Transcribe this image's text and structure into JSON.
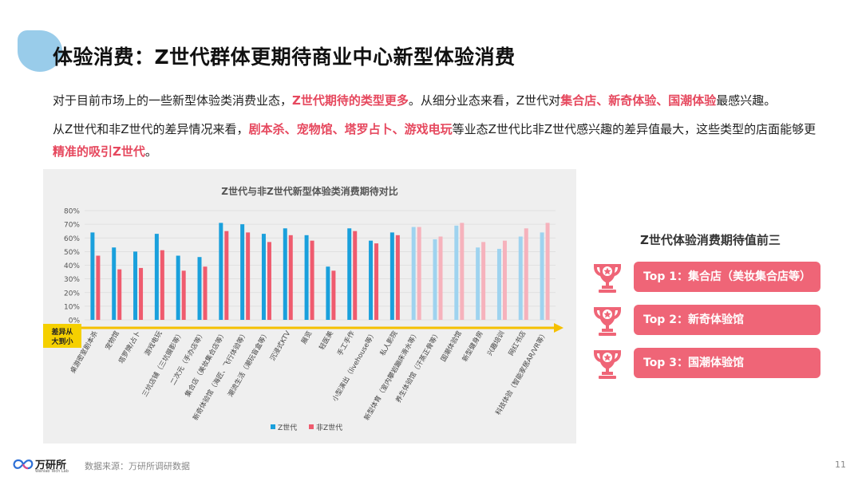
{
  "header": {
    "title": "体验消费：Z世代群体更期待商业中心新型体验消费"
  },
  "paragraph1": {
    "part1": "对于目前市场上的一些新型体验类消费业态，",
    "highlight1": "Z世代期待的类型更多",
    "part2": "。从细分业态来看，Z世代对",
    "highlight2": "集合店、新奇体验、国潮体验",
    "part3": "最感兴趣。"
  },
  "paragraph2": {
    "part1": "从Z世代和非Z世代的差异情况来看，",
    "highlight1": "剧本杀、宠物馆、塔罗占卜、游戏电玩",
    "part2": "等业态Z世代比非Z世代感兴趣的差异值最大，这些类型的店面能够更",
    "highlight2": "精准的吸引Z世代",
    "part3": "。"
  },
  "chart_data": {
    "type": "bar",
    "title": "Z世代与非Z世代新型体验类消费期待对比",
    "yticks": [
      "0%",
      "10%",
      "20%",
      "30%",
      "40%",
      "50%",
      "60%",
      "70%",
      "80%"
    ],
    "ylim": [
      0,
      80
    ],
    "arrow_label": "差异从大到小",
    "categories": [
      "桌游密室剧本杀",
      "宠物馆",
      "塔罗牌/占卜",
      "游戏电玩",
      "三坑店铺（三坑摄影等）",
      "二次元（手办店等）",
      "集合店（美妆集合店等）",
      "新奇体验馆（海匠、飞行体验等）",
      "潮流生活（潮玩盲盒等）",
      "沉浸式KTV",
      "展览",
      "轻医美",
      "手工手作",
      "小型演出（livehouse等）",
      "私人影院",
      "新型体育（室内攀岩蹦床滑水等）",
      "养生体验馆（汗蒸正骨等）",
      "国潮体验馆",
      "新型健身房",
      "兴趣培训",
      "网红书店",
      "科技体验（智能家居AR/VR等）"
    ],
    "series": [
      {
        "name": "Z世代",
        "color": "#1aa0dc",
        "faded_color": "#9fd3ef",
        "values": [
          64,
          53,
          50,
          63,
          47,
          46,
          71,
          70,
          63,
          67,
          62,
          39,
          67,
          58,
          64,
          68,
          59,
          69,
          53,
          52,
          61,
          64
        ]
      },
      {
        "name": "非Z世代",
        "color": "#ef5b6e",
        "faded_color": "#f6b2bc",
        "values": [
          47,
          37,
          38,
          51,
          36,
          39,
          65,
          64,
          57,
          62,
          58,
          36,
          65,
          56,
          62,
          68,
          61,
          71,
          57,
          58,
          67,
          71
        ]
      }
    ],
    "faded_from_index": 15,
    "legend": {
      "position": "bottom-center"
    }
  },
  "top3": {
    "title": "Z世代体验消费期待值前三",
    "items": [
      {
        "label": "Top 1：集合店（美妆集合店等）"
      },
      {
        "label": "Top 2：新奇体验馆"
      },
      {
        "label": "Top 3：国潮体验馆"
      }
    ],
    "trophy_color": "#ef6577"
  },
  "footer": {
    "logo_name": "万研所",
    "logo_sub": "Wanlab Tech Lab",
    "source": "数据来源：万研所调研数据",
    "page_number": "11"
  }
}
